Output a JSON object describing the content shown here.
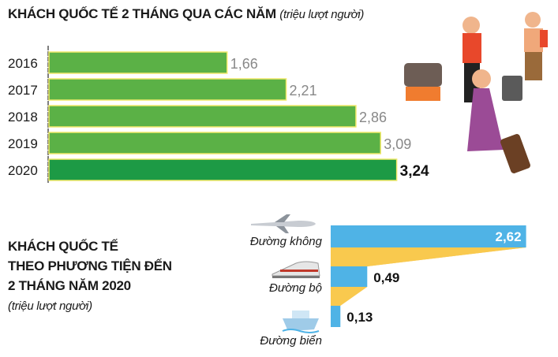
{
  "chart_data": [
    {
      "type": "bar",
      "orientation": "horizontal",
      "title": "KHÁCH QUỐC TẾ 2 THÁNG QUA CÁC NĂM",
      "unit": "(triệu lượt người)",
      "categories": [
        "2016",
        "2017",
        "2018",
        "2019",
        "2020"
      ],
      "values": [
        1.66,
        2.21,
        2.86,
        3.09,
        3.24
      ],
      "labels": [
        "1,66",
        "2,21",
        "2,86",
        "3,09",
        "3,24"
      ],
      "colors": {
        "bar": "#5bb146",
        "highlight": "#1d9a45",
        "edge": "#f1e96a"
      }
    },
    {
      "type": "bar",
      "orientation": "horizontal",
      "title": [
        "KHÁCH QUỐC TẾ",
        "THEO PHƯƠNG TIỆN ĐẾN",
        "2 THÁNG NĂM 2020"
      ],
      "unit": "(triệu lượt người)",
      "categories": [
        "Đường không",
        "Đường bộ",
        "Đường biển"
      ],
      "icons": [
        "airplane-icon",
        "train-icon",
        "ship-icon"
      ],
      "values": [
        2.62,
        0.49,
        0.13
      ],
      "labels": [
        "2,62",
        "0,49",
        "0,13"
      ],
      "colors": {
        "bar": "#4fb3e6",
        "connector": "#f9c94e"
      }
    }
  ]
}
